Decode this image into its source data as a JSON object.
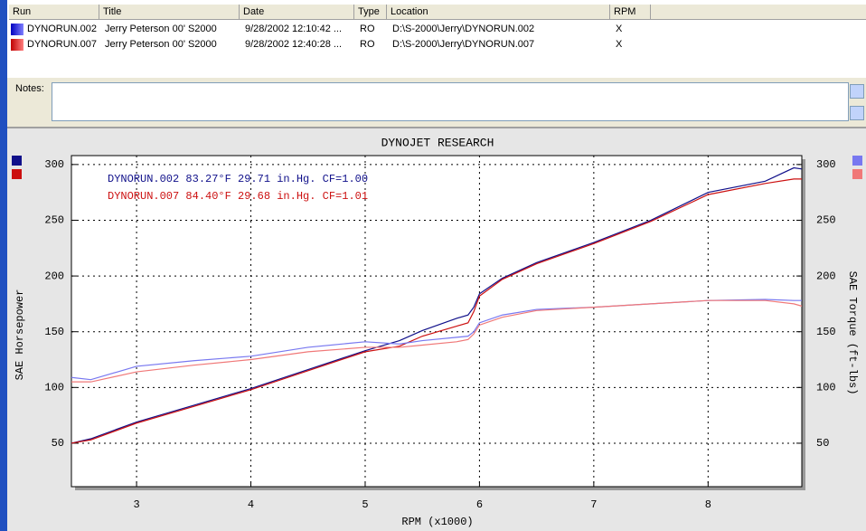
{
  "table": {
    "columns": [
      "Run",
      "Title",
      "Date",
      "Type",
      "Location",
      "RPM"
    ],
    "rows": [
      [
        "DYNORUN.002",
        "Jerry Peterson 00' S2000",
        "9/28/2002 12:10:42 ...",
        "RO",
        "D:\\S-2000\\Jerry\\DYNORUN.002",
        "X"
      ],
      [
        "DYNORUN.007",
        "Jerry Peterson 00' S2000",
        "9/28/2002 12:40:28 ...",
        "RO",
        "D:\\S-2000\\Jerry\\DYNORUN.007",
        "X"
      ]
    ]
  },
  "notes_label": "Notes:",
  "chart_data": {
    "type": "line",
    "title": "DYNOJET RESEARCH",
    "x_label": "RPM (x1000)",
    "y_label": "SAE Horsepower",
    "y2_label": "SAE Torque (ft-lbs)",
    "legend": [
      "DYNORUN.002 83.27°F 29.71 in.Hg. CF=1.00",
      "DYNORUN.007 84.40°F 29.68 in.Hg. CF=1.01"
    ],
    "x": [
      2.43,
      2.6,
      3,
      3.5,
      4,
      4.5,
      5,
      5.3,
      5.5,
      5.8,
      5.9,
      5.95,
      6,
      6.2,
      6.5,
      7,
      7.5,
      8,
      8.5,
      8.75,
      8.82
    ],
    "series": [
      {
        "color": "#10108a",
        "values": [
          50,
          54,
          69,
          84,
          99,
          116,
          133,
          142,
          151,
          162,
          165,
          172,
          184,
          198,
          212,
          230,
          250,
          275,
          285,
          297,
          296
        ]
      },
      {
        "color": "#cc1010",
        "values": [
          50,
          53,
          68,
          83,
          98,
          115,
          132,
          137,
          146,
          155,
          158,
          168,
          182,
          197,
          211,
          229,
          249,
          273,
          283,
          287,
          287
        ]
      },
      {
        "color": "#7878f0",
        "axis": "y2",
        "values": [
          109,
          107,
          119,
          124,
          128,
          136,
          141,
          139,
          142,
          145,
          146,
          150,
          158,
          165,
          170,
          172,
          175,
          178,
          179,
          178,
          178
        ]
      },
      {
        "color": "#f07878",
        "axis": "y2",
        "values": [
          105,
          105,
          114,
          120,
          125,
          132,
          136,
          136,
          138,
          141,
          143,
          148,
          156,
          163,
          169,
          172,
          175,
          178,
          178,
          175,
          173
        ]
      }
    ],
    "xlim": [
      2.43,
      8.82
    ],
    "xticks": [
      3,
      4,
      5,
      6,
      7,
      8
    ],
    "ylim": [
      11,
      308
    ],
    "yticks": [
      50,
      100,
      150,
      200,
      250,
      300
    ],
    "y2lim": [
      11,
      308
    ],
    "y2ticks": [
      50,
      100,
      150,
      200,
      250,
      300
    ],
    "grid": true
  }
}
